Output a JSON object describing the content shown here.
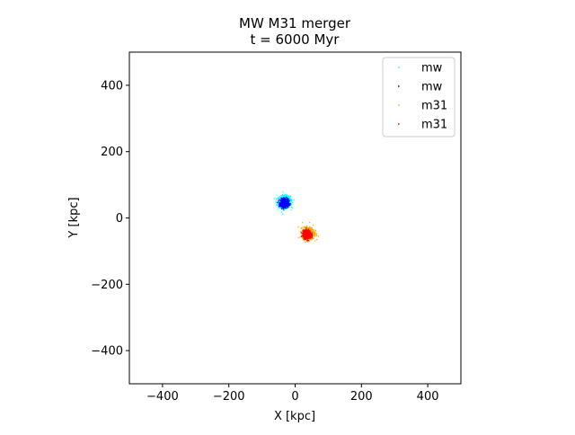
{
  "chart_data": {
    "type": "scatter",
    "title": "MW M31 merger",
    "subtitle": "t = 6000 Myr",
    "xlabel": "X [kpc]",
    "ylabel": "Y [kpc]",
    "xlim": [
      -500,
      500
    ],
    "ylim": [
      -500,
      500
    ],
    "xticks": [
      -400,
      -200,
      0,
      200,
      400
    ],
    "yticks": [
      -400,
      -200,
      0,
      200,
      400
    ],
    "xtick_labels": [
      "−400",
      "−200",
      "0",
      "200",
      "400"
    ],
    "ytick_labels": [
      "−400",
      "−200",
      "0",
      "200",
      "400"
    ],
    "grid": false,
    "legend_position": "top-right",
    "series": [
      {
        "name": "mw",
        "color": "#00ffff",
        "center": [
          -32,
          48
        ],
        "spread": 9,
        "count": 900
      },
      {
        "name": "mw",
        "color": "#0000ff",
        "center": [
          -32,
          45
        ],
        "spread": 6,
        "count": 700
      },
      {
        "name": "m31",
        "color": "#ffa500",
        "center": [
          40,
          -46
        ],
        "spread": 9,
        "count": 700
      },
      {
        "name": "m31",
        "color": "#ff0000",
        "center": [
          36,
          -50
        ],
        "spread": 6,
        "count": 700
      }
    ]
  }
}
